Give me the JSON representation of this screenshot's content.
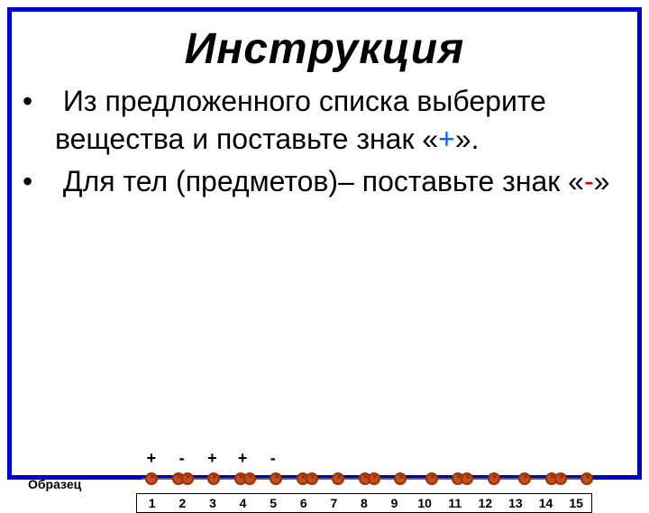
{
  "colors": {
    "frame_border": "#0000cc",
    "background": "#ffffff",
    "text": "#000000",
    "plus": "#0066ff",
    "minus": "#cc0000",
    "bead_fill": "#c05020",
    "bead_border": "#a03000",
    "line": "#606060"
  },
  "title": "Инструкция",
  "bullets": [
    {
      "pre": "Из предложенного списка выберите вещества и поставьте знак «",
      "sign": "+",
      "sign_class": "plus-sign",
      "post": "»."
    },
    {
      "pre": "Для тел (предметов)– поставьте знак «",
      "sign": "-",
      "sign_class": "minus-sign",
      "post": "»"
    }
  ],
  "sample": {
    "label": "Образец",
    "count": 15,
    "answers": [
      "+",
      "-",
      "+",
      "+",
      "-",
      "",
      "",
      "",
      "",
      "",
      "",
      "",
      "",
      "",
      ""
    ],
    "pattern": [
      "single",
      "pair",
      "single",
      "pair",
      "single",
      "pair",
      "single",
      "pair",
      "single",
      "single",
      "pair",
      "single",
      "single",
      "pair",
      "single"
    ],
    "numbers": [
      "1",
      "2",
      "3",
      "4",
      "5",
      "6",
      "7",
      "8",
      "9",
      "10",
      "11",
      "12",
      "13",
      "14",
      "15"
    ]
  },
  "typography": {
    "title_fontsize": 48,
    "title_weight": "bold",
    "title_style": "italic",
    "bullet_fontsize": 32,
    "sample_label_fontsize": 14,
    "number_fontsize": 14,
    "answer_fontsize": 18
  }
}
